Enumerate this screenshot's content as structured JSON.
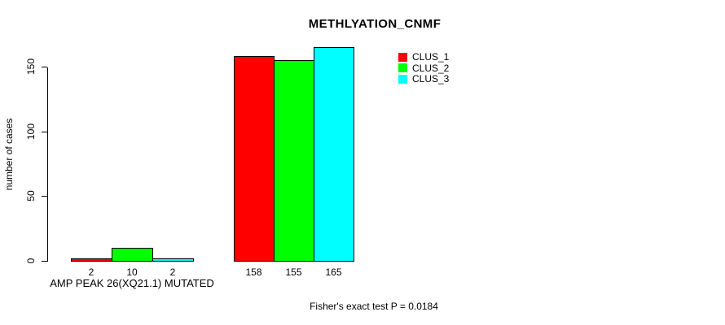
{
  "title": "METHLYATION_CNMF",
  "axes": {
    "ylabel": "number of cases",
    "xlabel": "AMP PEAK 26(XQ21.1) MUTATED"
  },
  "footer": "Fisher's exact test P = 0.0184",
  "legend": {
    "position": "top-right",
    "items": [
      {
        "label": "CLUS_1",
        "color": "#ff0000"
      },
      {
        "label": "CLUS_2",
        "color": "#00ff00"
      },
      {
        "label": "CLUS_3",
        "color": "#00ffff"
      }
    ]
  },
  "chart_data": {
    "type": "bar",
    "title": "METHLYATION_CNMF",
    "xlabel": "AMP PEAK 26(XQ21.1) MUTATED",
    "ylabel": "number of cases",
    "group_labels": [
      "AMP PEAK 26(XQ21.1) MUTATED",
      ""
    ],
    "series": [
      {
        "name": "CLUS_1",
        "color": "#ff0000",
        "values": [
          2,
          158
        ]
      },
      {
        "name": "CLUS_2",
        "color": "#00ff00",
        "values": [
          10,
          155
        ]
      },
      {
        "name": "CLUS_3",
        "color": "#00ffff",
        "values": [
          2,
          165
        ]
      }
    ],
    "bar_value_labels": [
      [
        2,
        10,
        2
      ],
      [
        158,
        155,
        165
      ]
    ],
    "yticks": [
      0,
      50,
      100,
      150
    ],
    "ylim": [
      0,
      165
    ],
    "grid": false,
    "legend_position": "top-right",
    "annotation": "Fisher's exact test P = 0.0184",
    "bar_border_color": "#000000",
    "background_color": "#ffffff"
  }
}
